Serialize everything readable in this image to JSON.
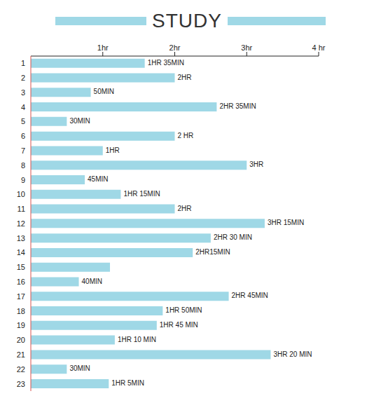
{
  "chart_data": {
    "type": "bar",
    "title": "STUDY",
    "orientation": "horizontal",
    "categories": [
      "1",
      "2",
      "3",
      "4",
      "5",
      "6",
      "7",
      "8",
      "9",
      "10",
      "11",
      "12",
      "13",
      "14",
      "15",
      "16",
      "17",
      "18",
      "19",
      "20",
      "21",
      "22",
      "23"
    ],
    "values": [
      1.583,
      2,
      0.833,
      2.583,
      0.5,
      2,
      1,
      3,
      0.75,
      1.25,
      2,
      3.25,
      2.5,
      2.25,
      1.1,
      0.667,
      2.75,
      1.833,
      1.75,
      1.167,
      3.333,
      0.5,
      1.083
    ],
    "value_labels": [
      "1HR 35MIN",
      "2HR",
      "50MIN",
      "2HR 35MIN",
      "30MIN",
      "2 HR",
      "1HR",
      "3HR",
      "45MIN",
      "1HR 15MIN",
      "2HR",
      "3HR 15MIN",
      "2HR 30 MIN",
      "2HR15MIN",
      null,
      "40MIN",
      "2HR 45MIN",
      "1HR 50MIN",
      "1HR 45 MIN",
      "1HR 10 MIN",
      "3HR 20 MIN",
      "30MIN",
      "1HR 5MIN"
    ],
    "data_labels": true,
    "color": "#9fd8e6",
    "xlim": [
      0,
      4
    ],
    "xticks": [
      {
        "value": 1,
        "label": "1hr"
      },
      {
        "value": 2,
        "label": "2hr"
      },
      {
        "value": 3,
        "label": "3hr"
      },
      {
        "value": 4,
        "label": "4 hr"
      }
    ]
  }
}
